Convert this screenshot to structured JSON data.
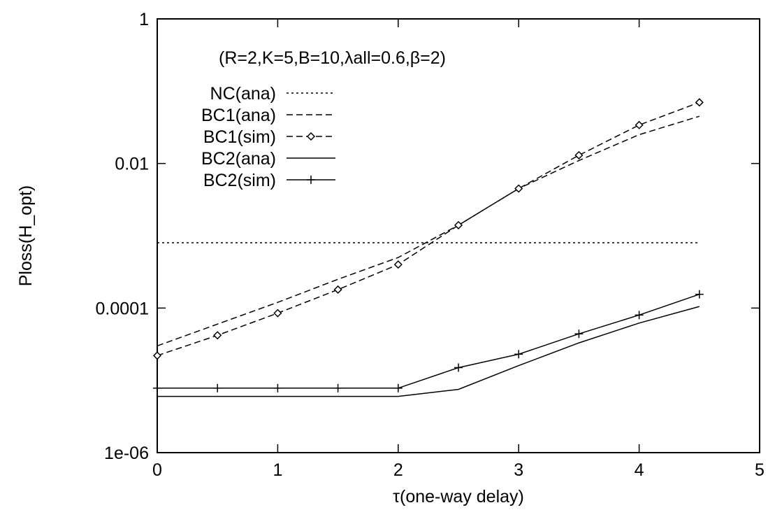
{
  "chart_data": {
    "type": "line",
    "title": "",
    "annotation": "(R=2,K=5,B=10,λall=0.6,β=2)",
    "xlabel": "τ(one-way delay)",
    "ylabel": "Ploss(H_opt)",
    "xlim": [
      0,
      5
    ],
    "ylim": [
      1e-06,
      1
    ],
    "y_scale": "log",
    "x_ticks": [
      0,
      1,
      2,
      3,
      4,
      5
    ],
    "x_tick_labels": [
      "0",
      "1",
      "2",
      "3",
      "4",
      "5"
    ],
    "y_ticks": [
      1e-06,
      0.0001,
      0.01,
      1
    ],
    "y_tick_labels": [
      "1e-06",
      "0.0001",
      "0.01",
      "1"
    ],
    "grid": false,
    "legend_position": "top-left",
    "series": [
      {
        "name": "NC(ana)",
        "style": "dotted",
        "marker": "none",
        "x": [
          0,
          4.5
        ],
        "y": [
          0.0008,
          0.0008
        ]
      },
      {
        "name": "BC1(ana)",
        "style": "dashed",
        "marker": "none",
        "x": [
          0,
          0.5,
          1,
          1.5,
          2,
          2.5,
          3,
          3.5,
          4,
          4.5
        ],
        "y": [
          3e-05,
          6e-05,
          0.00012,
          0.00025,
          0.0005,
          0.0014,
          0.0045,
          0.011,
          0.025,
          0.045
        ]
      },
      {
        "name": "BC1(sim)",
        "style": "dashed",
        "marker": "diamond",
        "x": [
          0,
          0.5,
          1,
          1.5,
          2,
          2.5,
          3,
          3.5,
          4,
          4.5
        ],
        "y": [
          2.2e-05,
          4.2e-05,
          8.5e-05,
          0.00018,
          0.0004,
          0.0014,
          0.0045,
          0.013,
          0.034,
          0.07
        ]
      },
      {
        "name": "BC2(ana)",
        "style": "solid",
        "marker": "none",
        "x": [
          0,
          0.5,
          1,
          1.5,
          2,
          2.5,
          3,
          3.5,
          4,
          4.5
        ],
        "y": [
          6e-06,
          6e-06,
          6e-06,
          6e-06,
          6e-06,
          7.5e-06,
          1.6e-05,
          3.3e-05,
          6.2e-05,
          0.000105
        ]
      },
      {
        "name": "BC2(sim)",
        "style": "solid",
        "marker": "plus",
        "x": [
          0,
          0.5,
          1,
          1.5,
          2,
          2.5,
          3,
          3.5,
          4,
          4.5
        ],
        "y": [
          7.8e-06,
          7.8e-06,
          7.8e-06,
          7.8e-06,
          7.8e-06,
          1.5e-05,
          2.3e-05,
          4.4e-05,
          8e-05,
          0.000155
        ]
      }
    ]
  }
}
